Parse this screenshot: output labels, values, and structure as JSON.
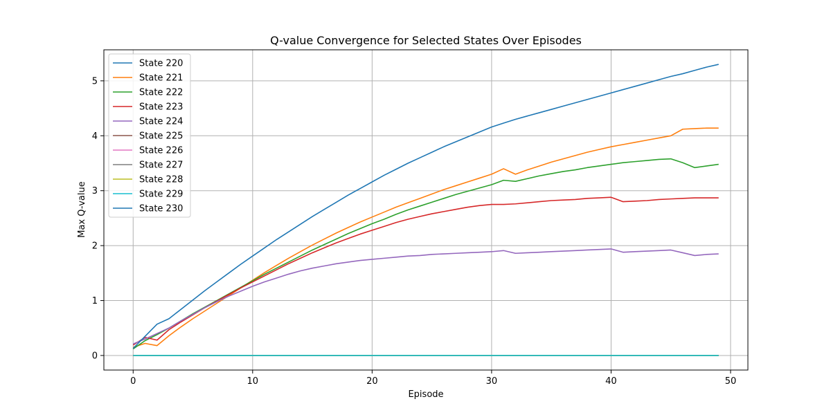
{
  "chart_data": {
    "type": "line",
    "title": "Q-value Convergence for Selected States Over Episodes",
    "xlabel": "Episode",
    "ylabel": "Max Q-value",
    "xlim": [
      -2.45,
      51.45
    ],
    "ylim": [
      -0.265,
      5.565
    ],
    "xticks": [
      0,
      10,
      20,
      30,
      40,
      50
    ],
    "yticks": [
      0,
      1,
      2,
      3,
      4,
      5
    ],
    "grid": true,
    "legend_position": "upper-left",
    "x": [
      0,
      1,
      2,
      3,
      4,
      5,
      6,
      7,
      8,
      9,
      10,
      11,
      12,
      13,
      14,
      15,
      16,
      17,
      18,
      19,
      20,
      21,
      22,
      23,
      24,
      25,
      26,
      27,
      28,
      29,
      30,
      31,
      32,
      33,
      34,
      35,
      36,
      37,
      38,
      39,
      40,
      41,
      42,
      43,
      44,
      45,
      46,
      47,
      48,
      49
    ],
    "series": [
      {
        "name": "State 220",
        "color": "#1f77b4",
        "values": [
          0,
          0,
          0,
          0,
          0,
          0,
          0,
          0,
          0,
          0,
          0,
          0,
          0,
          0,
          0,
          0,
          0,
          0,
          0,
          0,
          0,
          0,
          0,
          0,
          0,
          0,
          0,
          0,
          0,
          0,
          0,
          0,
          0,
          0,
          0,
          0,
          0,
          0,
          0,
          0,
          0,
          0,
          0,
          0,
          0,
          0,
          0,
          0,
          0,
          0
        ]
      },
      {
        "name": "State 221",
        "color": "#ff7f0e",
        "values": [
          0.15,
          0.22,
          0.18,
          0.36,
          0.52,
          0.67,
          0.81,
          0.95,
          1.09,
          1.23,
          1.37,
          1.51,
          1.64,
          1.77,
          1.89,
          2.01,
          2.12,
          2.23,
          2.33,
          2.43,
          2.52,
          2.61,
          2.7,
          2.78,
          2.86,
          2.94,
          3.02,
          3.09,
          3.16,
          3.23,
          3.3,
          3.4,
          3.3,
          3.38,
          3.45,
          3.52,
          3.58,
          3.64,
          3.7,
          3.75,
          3.8,
          3.84,
          3.88,
          3.92,
          3.96,
          4.0,
          4.12,
          4.13,
          4.14,
          4.14
        ]
      },
      {
        "name": "State 222",
        "color": "#2ca02c",
        "values": [
          0.12,
          0.27,
          0.38,
          0.5,
          0.63,
          0.76,
          0.88,
          1.0,
          1.12,
          1.24,
          1.36,
          1.48,
          1.59,
          1.7,
          1.81,
          1.92,
          2.02,
          2.12,
          2.22,
          2.31,
          2.4,
          2.48,
          2.57,
          2.65,
          2.72,
          2.79,
          2.86,
          2.93,
          2.99,
          3.05,
          3.11,
          3.19,
          3.17,
          3.22,
          3.27,
          3.31,
          3.35,
          3.38,
          3.42,
          3.45,
          3.48,
          3.51,
          3.53,
          3.55,
          3.57,
          3.58,
          3.51,
          3.42,
          3.45,
          3.48
        ]
      },
      {
        "name": "State 223",
        "color": "#d62728",
        "values": [
          0.19,
          0.33,
          0.28,
          0.47,
          0.61,
          0.74,
          0.87,
          0.99,
          1.11,
          1.23,
          1.34,
          1.45,
          1.56,
          1.67,
          1.77,
          1.87,
          1.96,
          2.05,
          2.13,
          2.21,
          2.28,
          2.35,
          2.42,
          2.48,
          2.53,
          2.58,
          2.62,
          2.66,
          2.7,
          2.73,
          2.75,
          2.75,
          2.76,
          2.78,
          2.8,
          2.82,
          2.83,
          2.84,
          2.86,
          2.87,
          2.88,
          2.8,
          2.81,
          2.82,
          2.84,
          2.85,
          2.86,
          2.87,
          2.87,
          2.87
        ]
      },
      {
        "name": "State 224",
        "color": "#9467bd",
        "values": [
          0.21,
          0.3,
          0.4,
          0.5,
          0.63,
          0.75,
          0.87,
          0.98,
          1.08,
          1.17,
          1.26,
          1.34,
          1.41,
          1.48,
          1.54,
          1.59,
          1.63,
          1.67,
          1.7,
          1.73,
          1.75,
          1.77,
          1.79,
          1.81,
          1.82,
          1.84,
          1.85,
          1.86,
          1.87,
          1.88,
          1.89,
          1.91,
          1.86,
          1.87,
          1.88,
          1.89,
          1.9,
          1.91,
          1.92,
          1.93,
          1.94,
          1.88,
          1.89,
          1.9,
          1.91,
          1.92,
          1.87,
          1.82,
          1.84,
          1.85
        ]
      },
      {
        "name": "State 225",
        "color": "#8c564b",
        "values": [
          0,
          0,
          0,
          0,
          0,
          0,
          0,
          0,
          0,
          0,
          0,
          0,
          0,
          0,
          0,
          0,
          0,
          0,
          0,
          0,
          0,
          0,
          0,
          0,
          0,
          0,
          0,
          0,
          0,
          0,
          0,
          0,
          0,
          0,
          0,
          0,
          0,
          0,
          0,
          0,
          0,
          0,
          0,
          0,
          0,
          0,
          0,
          0,
          0,
          0
        ]
      },
      {
        "name": "State 226",
        "color": "#e377c2",
        "values": [
          0,
          0,
          0,
          0,
          0,
          0,
          0,
          0,
          0,
          0,
          0,
          0,
          0,
          0,
          0,
          0,
          0,
          0,
          0,
          0,
          0,
          0,
          0,
          0,
          0,
          0,
          0,
          0,
          0,
          0,
          0,
          0,
          0,
          0,
          0,
          0,
          0,
          0,
          0,
          0,
          0,
          0,
          0,
          0,
          0,
          0,
          0,
          0,
          0,
          0
        ]
      },
      {
        "name": "State 227",
        "color": "#7f7f7f",
        "values": [
          0,
          0,
          0,
          0,
          0,
          0,
          0,
          0,
          0,
          0,
          0,
          0,
          0,
          0,
          0,
          0,
          0,
          0,
          0,
          0,
          0,
          0,
          0,
          0,
          0,
          0,
          0,
          0,
          0,
          0,
          0,
          0,
          0,
          0,
          0,
          0,
          0,
          0,
          0,
          0,
          0,
          0,
          0,
          0,
          0,
          0,
          0,
          0,
          0,
          0
        ]
      },
      {
        "name": "State 228",
        "color": "#bcbd22",
        "values": [
          0,
          0,
          0,
          0,
          0,
          0,
          0,
          0,
          0,
          0,
          0,
          0,
          0,
          0,
          0,
          0,
          0,
          0,
          0,
          0,
          0,
          0,
          0,
          0,
          0,
          0,
          0,
          0,
          0,
          0,
          0,
          0,
          0,
          0,
          0,
          0,
          0,
          0,
          0,
          0,
          0,
          0,
          0,
          0,
          0,
          0,
          0,
          0,
          0,
          0
        ]
      },
      {
        "name": "State 229",
        "color": "#17becf",
        "values": [
          0,
          0,
          0,
          0,
          0,
          0,
          0,
          0,
          0,
          0,
          0,
          0,
          0,
          0,
          0,
          0,
          0,
          0,
          0,
          0,
          0,
          0,
          0,
          0,
          0,
          0,
          0,
          0,
          0,
          0,
          0,
          0,
          0,
          0,
          0,
          0,
          0,
          0,
          0,
          0,
          0,
          0,
          0,
          0,
          0,
          0,
          0,
          0,
          0,
          0
        ]
      },
      {
        "name": "State 230",
        "color": "#1f77b4",
        "values": [
          0.13,
          0.35,
          0.57,
          0.67,
          0.84,
          1.01,
          1.18,
          1.34,
          1.5,
          1.66,
          1.81,
          1.96,
          2.11,
          2.25,
          2.39,
          2.53,
          2.66,
          2.79,
          2.92,
          3.04,
          3.16,
          3.28,
          3.39,
          3.5,
          3.6,
          3.7,
          3.8,
          3.89,
          3.98,
          4.07,
          4.16,
          4.23,
          4.3,
          4.36,
          4.42,
          4.48,
          4.54,
          4.6,
          4.66,
          4.72,
          4.78,
          4.84,
          4.9,
          4.96,
          5.02,
          5.08,
          5.13,
          5.19,
          5.25,
          5.3
        ]
      }
    ]
  }
}
